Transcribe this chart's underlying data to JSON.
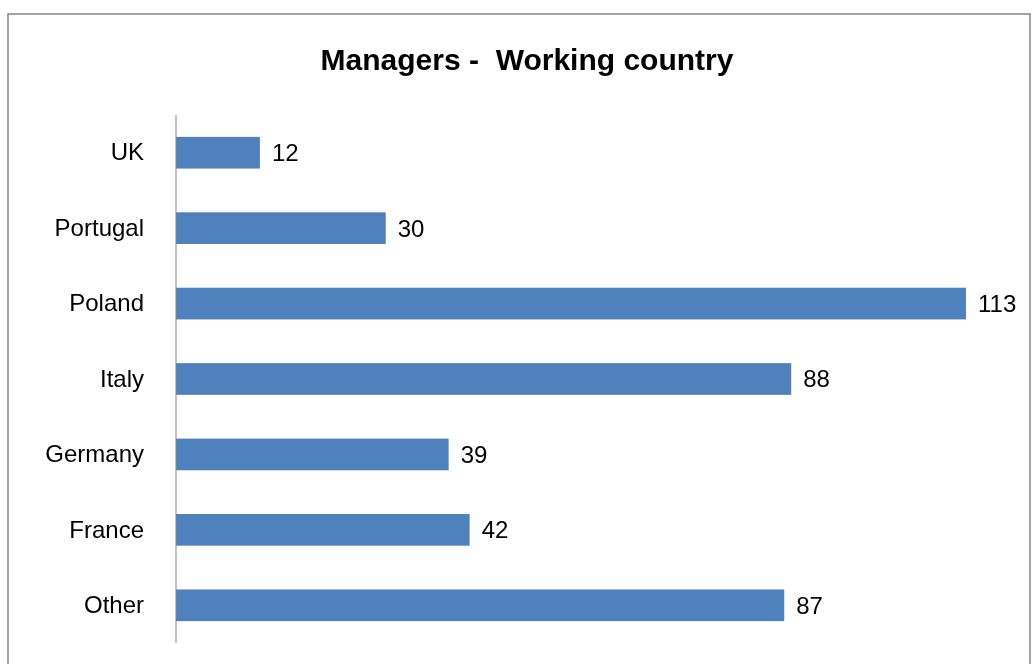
{
  "chart_data": {
    "type": "bar",
    "orientation": "horizontal",
    "title": "Managers -  Working country",
    "categories": [
      "UK",
      "Portugal",
      "Poland",
      "Italy",
      "Germany",
      "France",
      "Other"
    ],
    "values": [
      12,
      30,
      113,
      88,
      39,
      42,
      87
    ],
    "color": "#4f81bd",
    "data_labels": true
  }
}
